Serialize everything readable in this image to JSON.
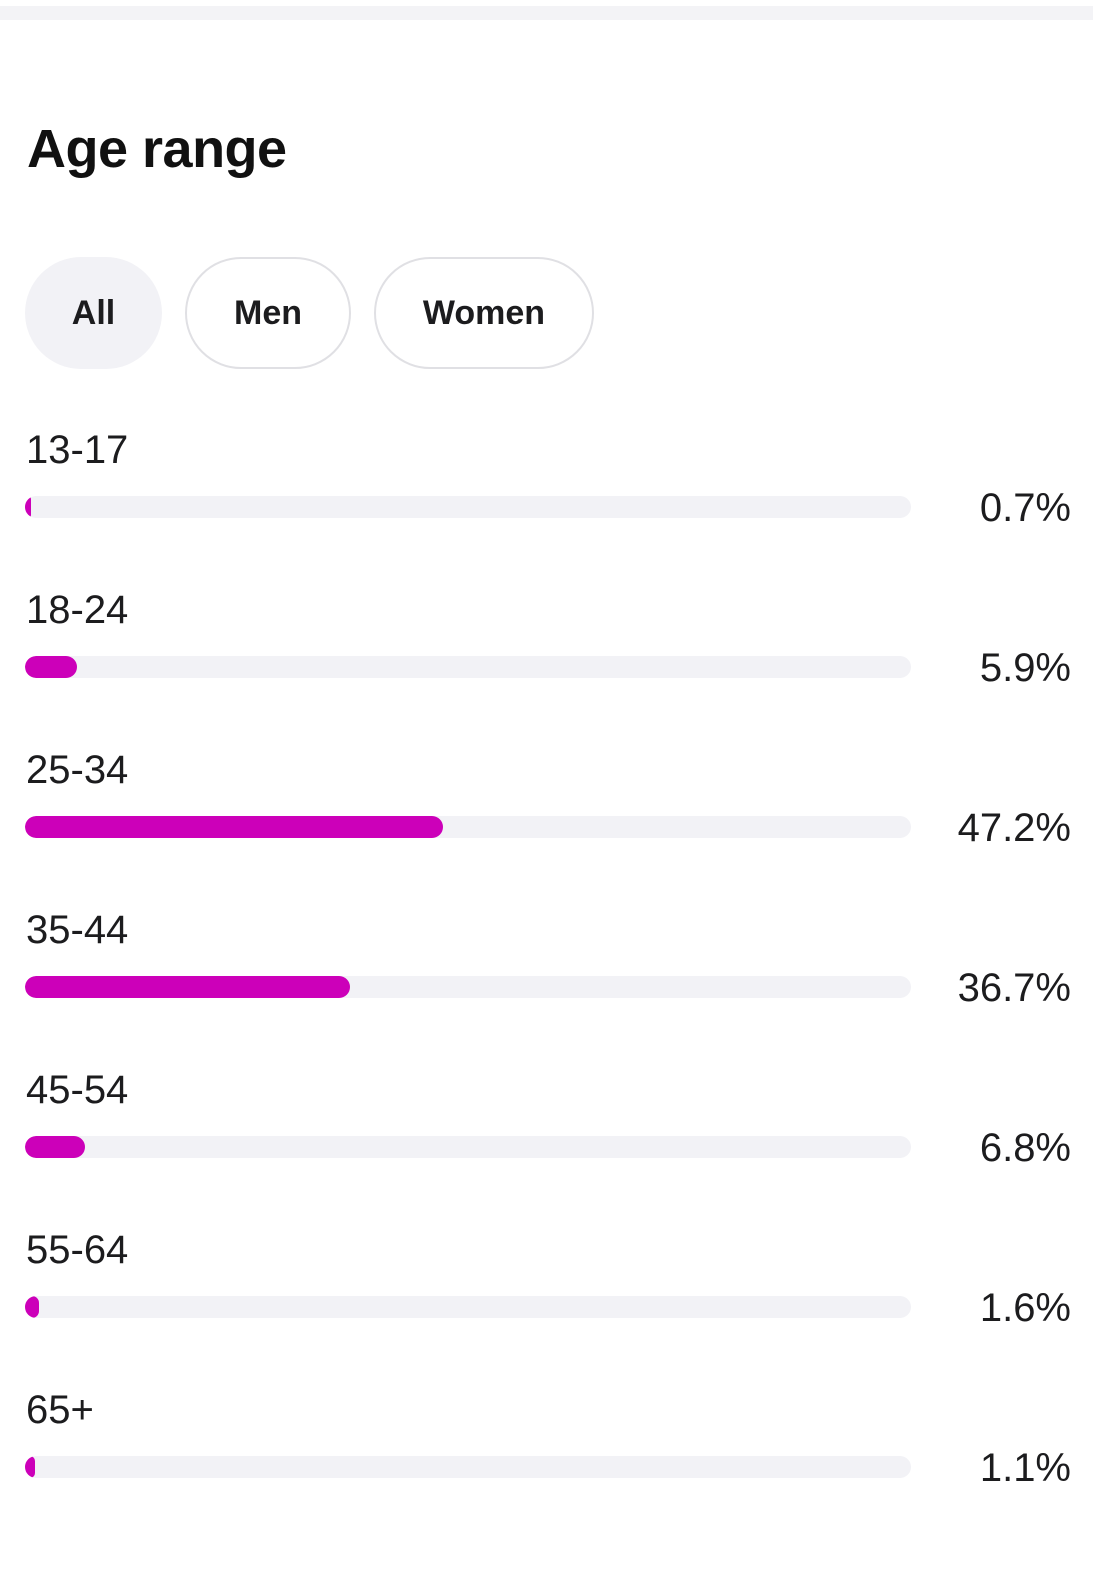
{
  "section": {
    "title": "Age range"
  },
  "filters": {
    "options": [
      "All",
      "Men",
      "Women"
    ],
    "selected": "All"
  },
  "colors": {
    "bar_fill": "#cc00b9",
    "bar_track": "#f2f2f6",
    "selected_chip": "#f2f2f6"
  },
  "age_groups": [
    {
      "label": "13-17",
      "value": "0.7%",
      "percent": 0.7
    },
    {
      "label": "18-24",
      "value": "5.9%",
      "percent": 5.9
    },
    {
      "label": "25-34",
      "value": "47.2%",
      "percent": 47.2
    },
    {
      "label": "35-44",
      "value": "36.7%",
      "percent": 36.7
    },
    {
      "label": "45-54",
      "value": "6.8%",
      "percent": 6.8
    },
    {
      "label": "55-64",
      "value": "1.6%",
      "percent": 1.6
    },
    {
      "label": "65+",
      "value": "1.1%",
      "percent": 1.1
    }
  ]
}
